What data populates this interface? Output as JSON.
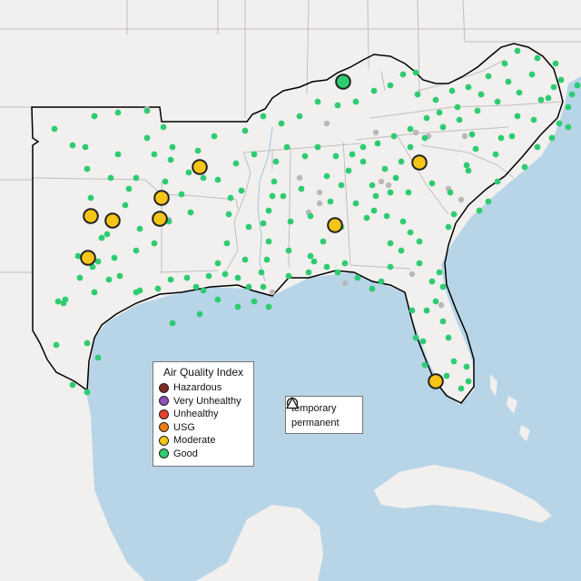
{
  "legend": {
    "title": "Air Quality Index",
    "categories": [
      {
        "label": "Hazardous",
        "color": "#7e2b24"
      },
      {
        "label": "Very Unhealthy",
        "color": "#8f4fb5"
      },
      {
        "label": "Unhealthy",
        "color": "#e9402c"
      },
      {
        "label": "USG",
        "color": "#f07b14"
      },
      {
        "label": "Moderate",
        "color": "#f5c518"
      },
      {
        "label": "Good",
        "color": "#2ecc71"
      }
    ]
  },
  "monitor_types": [
    {
      "label": "temporary",
      "symbol": "circle"
    },
    {
      "label": "permanent",
      "symbol": "triangle"
    }
  ],
  "colors": {
    "land": "#f2f0ee",
    "water": "#b8d5e8",
    "state_borders": "#c4bcc0",
    "region_outline": "#000000",
    "good_station": "#2ecc71",
    "inactive_station": "#b8b8b8",
    "moderate_station": "#f5c518"
  }
}
